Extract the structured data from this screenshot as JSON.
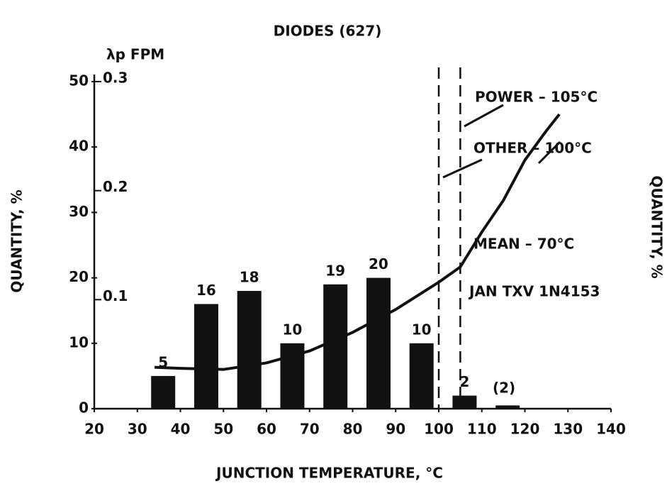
{
  "chart_data": {
    "type": "bar",
    "title": "DIODES (627)",
    "x_label": "JUNCTION TEMPERATURE, °C",
    "y_label": "QUANTITY, %",
    "y2_label": "λp FPM",
    "right_label": "QUANTITY, %",
    "x": [
      36,
      46,
      56,
      66,
      76,
      86,
      96,
      106,
      116
    ],
    "values": [
      5,
      16,
      18,
      10,
      19,
      20,
      10,
      2,
      0.5
    ],
    "color": "#111111",
    "xlim": [
      20,
      140
    ],
    "xticks": [
      20,
      30,
      40,
      50,
      60,
      70,
      80,
      90,
      100,
      110,
      120,
      130,
      140
    ],
    "ylim": [
      0,
      50
    ],
    "yticks": [
      0,
      10,
      20,
      30,
      40,
      50
    ],
    "y2lim": [
      0,
      0.3
    ],
    "y2ticks": [
      0.1,
      0.2,
      0.3
    ],
    "curve": {
      "axis": "y2",
      "color": "#111111",
      "x": [
        34,
        40,
        50,
        60,
        70,
        80,
        90,
        100,
        105,
        110,
        115,
        120,
        125,
        128
      ],
      "values": [
        0.038,
        0.037,
        0.036,
        0.042,
        0.053,
        0.07,
        0.091,
        0.116,
        0.13,
        0.162,
        0.191,
        0.228,
        0.255,
        0.27
      ]
    },
    "vlines": [
      100,
      105
    ],
    "annotations": [
      "POWER – 105°C",
      "OTHER – 100°C",
      "MEAN –  70°C",
      "JAN TXV 1N4153",
      "(2)"
    ]
  }
}
